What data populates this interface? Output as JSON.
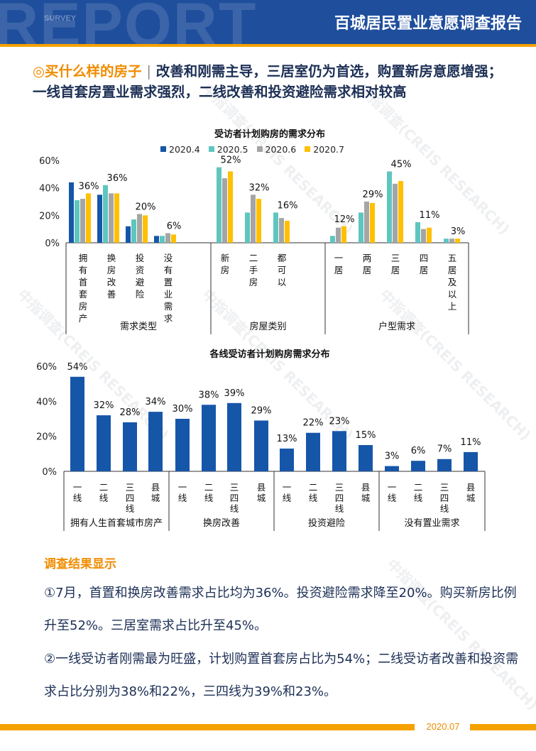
{
  "header": {
    "bg_text": "REPORT",
    "bg_subtext": "SURVEY",
    "title": "百城居民置业意愿调查报告"
  },
  "headline": {
    "bullet": "◎",
    "topic": "买什么样的房子",
    "separator": "|",
    "text": "改善和刚需主导，三居室仍为首选，购置新房意愿增强；一线首套房置业需求强烈，二线改善和投资避险需求相对较高"
  },
  "colors": {
    "s2020_4": "#1656a9",
    "s2020_5": "#5ec6bf",
    "s2020_6": "#a5a5a5",
    "s2020_7": "#ffc000",
    "line_bar": "#1656a9"
  },
  "chart_data": [
    {
      "type": "bar",
      "title": "受访者计划购房的需求分布",
      "yaxis_ticks": [
        "60%",
        "40%",
        "20%",
        "0%"
      ],
      "ylim": [
        0,
        60
      ],
      "categories": [
        "拥有首套房产",
        "换房改善",
        "投资避险",
        "没有置业需求",
        "新房",
        "二手房",
        "都可以",
        "一居",
        "两居",
        "三居",
        "四居",
        "五居及以上"
      ],
      "category_labels": [
        "拥有首套房产",
        "换房改善",
        "投资避险",
        "没有置业需求",
        "新房",
        "二手房",
        "都可以",
        "一居",
        "两居",
        "三居",
        "四居",
        "五居及以上"
      ],
      "groups": [
        {
          "label": "需求类型",
          "count": 4
        },
        {
          "label": "房屋类别",
          "count": 3
        },
        {
          "label": "户型需求",
          "count": 5
        }
      ],
      "series": [
        {
          "name": "2020.4",
          "values": [
            44,
            35,
            12,
            5,
            0,
            0,
            0,
            0,
            0,
            0,
            0,
            0
          ]
        },
        {
          "name": "2020.5",
          "values": [
            31,
            42,
            17,
            5,
            55,
            22,
            22,
            5,
            22,
            52,
            15,
            3
          ]
        },
        {
          "name": "2020.6",
          "values": [
            32,
            36,
            21,
            7,
            47,
            35,
            18,
            11,
            30,
            43,
            10,
            3
          ]
        },
        {
          "name": "2020.7",
          "values": [
            36,
            36,
            20,
            6,
            52,
            32,
            16,
            12,
            29,
            45,
            11,
            3
          ]
        }
      ],
      "data_labels": [
        "36%",
        "36%",
        "20%",
        "6%",
        "52%",
        "32%",
        "16%",
        "12%",
        "29%",
        "45%",
        "11%",
        "3%"
      ]
    },
    {
      "type": "bar",
      "title": "各线受访者计划购房需求分布",
      "yaxis_ticks": [
        "60%",
        "40%",
        "20%",
        "0%"
      ],
      "ylim": [
        0,
        60
      ],
      "categories": [
        "一线",
        "二线",
        "三四线",
        "县城",
        "一线",
        "二线",
        "三四线",
        "县城",
        "一线",
        "二线",
        "三四线",
        "县城",
        "一线",
        "二线",
        "三四线",
        "县城"
      ],
      "groups": [
        {
          "label": "拥有人生首套城市房产",
          "count": 4
        },
        {
          "label": "换房改善",
          "count": 4
        },
        {
          "label": "投资避险",
          "count": 4
        },
        {
          "label": "没有置业需求",
          "count": 4
        }
      ],
      "values": [
        54,
        32,
        28,
        34,
        30,
        38,
        39,
        29,
        13,
        22,
        23,
        15,
        3,
        6,
        7,
        11
      ],
      "data_labels": [
        "54%",
        "32%",
        "28%",
        "34%",
        "30%",
        "38%",
        "39%",
        "29%",
        "13%",
        "22%",
        "23%",
        "15%",
        "3%",
        "6%",
        "7%",
        "11%"
      ]
    }
  ],
  "findings": {
    "title": "调查结果显示",
    "p1": "①7月，首置和换房改善需求占比均为36%。投资避险需求降至20%。购买新房比例升至52%。三居室需求占比升至45%。",
    "p2": "②一线受访者刚需最为旺盛，计划购置首套房占比为54%；二线受访者改善和投资需求占比分别为38%和22%，三四线为39%和23%。"
  },
  "footer": {
    "date": "2020.07"
  },
  "watermark": "中指调查(CREIS RESEARCH)"
}
